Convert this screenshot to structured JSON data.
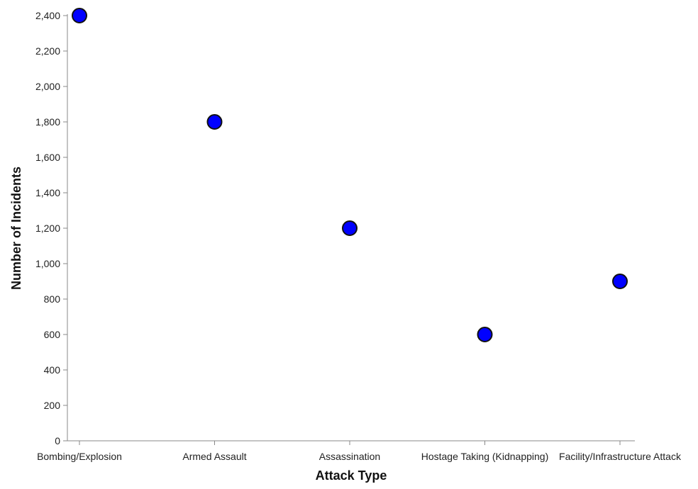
{
  "chart_data": {
    "type": "scatter",
    "title": "",
    "xlabel": "Attack Type",
    "ylabel": "Number of Incidents",
    "categories": [
      "Bombing/Explosion",
      "Armed Assault",
      "Assassination",
      "Hostage Taking (Kidnapping)",
      "Facility/Infrastructure Attack"
    ],
    "values": [
      2400,
      1800,
      1200,
      600,
      900
    ],
    "ylim": [
      0,
      2400
    ],
    "yticks": [
      0,
      200,
      400,
      600,
      800,
      1000,
      1200,
      1400,
      1600,
      1800,
      2000,
      2200,
      2400
    ],
    "ytick_labels": [
      "0",
      "200",
      "400",
      "600",
      "800",
      "1,000",
      "1,200",
      "1,400",
      "1,600",
      "1,800",
      "2,000",
      "2,200",
      "2,400"
    ],
    "grid": false,
    "legend": "none",
    "colors": {
      "point_fill": "#0000ff",
      "point_stroke": "#111111",
      "axis": "#888888"
    }
  }
}
